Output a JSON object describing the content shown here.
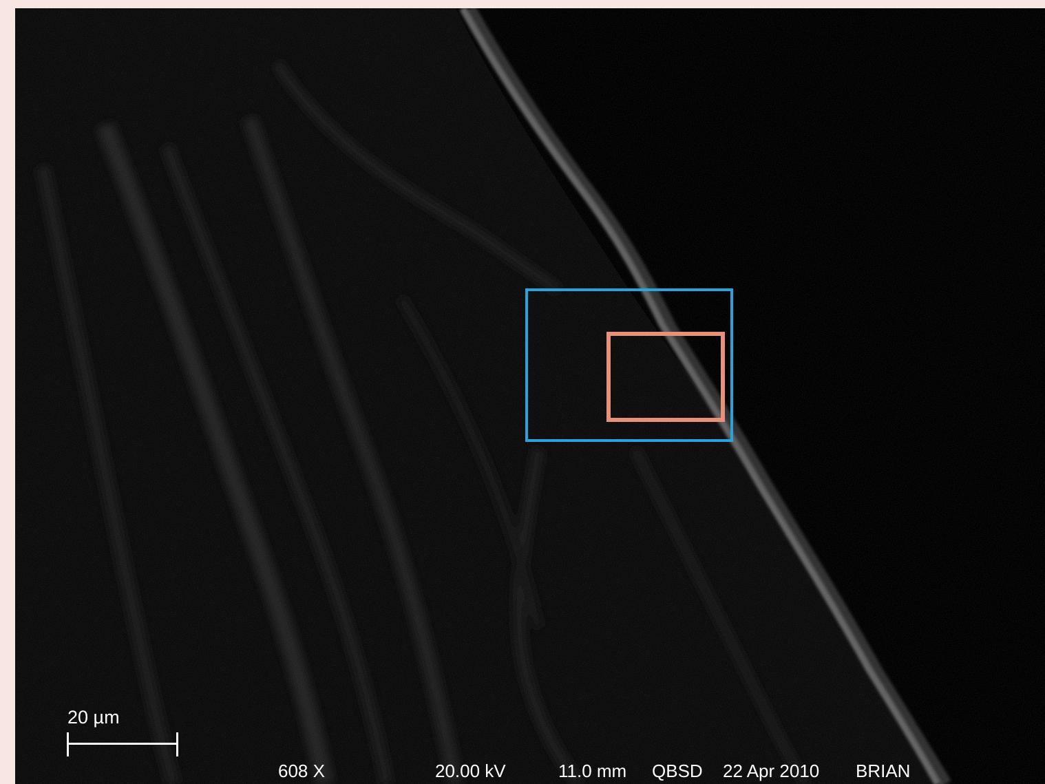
{
  "colors": {
    "background": "#f8e6e2",
    "image_background": "#000000",
    "roi_outer": "#29a3de",
    "roi_inner": "#e8917a",
    "overlay_text": "#ffffff"
  },
  "scale_bar": {
    "label": "20 µm"
  },
  "info_bar": {
    "magnification": "608 X",
    "voltage": "20.00 kV",
    "working_distance": "11.0 mm",
    "detector": "QBSD",
    "date": "22 Apr 2010",
    "operator": "BRIAN"
  }
}
